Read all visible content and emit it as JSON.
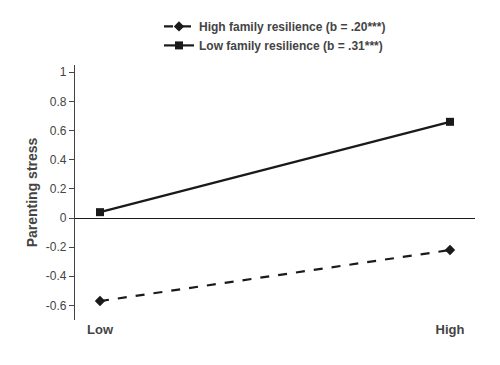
{
  "chart_data": {
    "type": "line",
    "categories": [
      "Low",
      "High"
    ],
    "series": [
      {
        "name": "Low family resilience (b = .31***)",
        "color": "#1a1a1a",
        "marker": "square",
        "line_style": "solid",
        "values": [
          0.04,
          0.66
        ]
      },
      {
        "name": "High family resilience (b = .20***)",
        "color": "#1a1a1a",
        "marker": "diamond",
        "line_style": "dashed",
        "values": [
          -0.57,
          -0.22
        ]
      }
    ],
    "ylabel": "Parenting stress",
    "ylim": [
      -0.7,
      1.05
    ],
    "yticks": [
      -0.6,
      -0.4,
      -0.2,
      0.0,
      0.2,
      0.4,
      0.6,
      0.8,
      1.0
    ],
    "grid": false,
    "legend": "top"
  }
}
